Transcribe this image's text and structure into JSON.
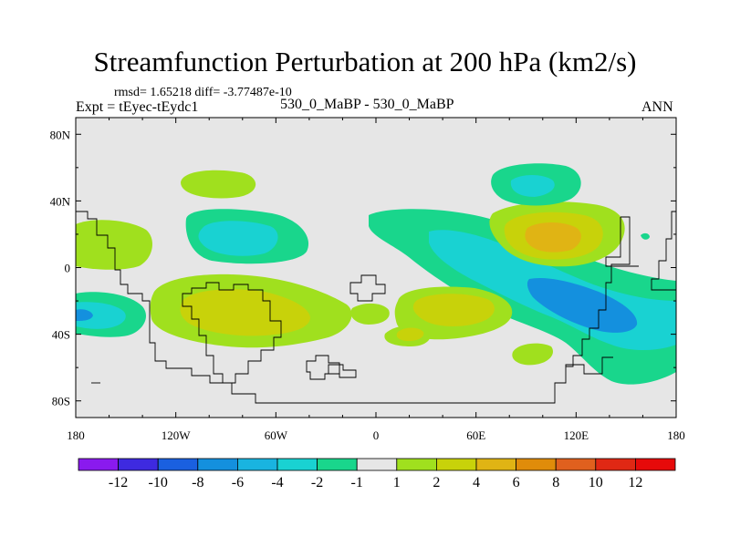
{
  "chart_data": {
    "type": "contour-map",
    "title": "Streamfunction Perturbation at 200 hPa (km2/s)",
    "stats_text": "rmsd= 1.65218 diff= -3.77487e-10",
    "experiment_text": "Expt = tEyec-tEydc1",
    "case_text": "530_0_MaBP - 530_0_MaBP",
    "season": "ANN",
    "x_ticks": [
      "180",
      "120W",
      "60W",
      "0",
      "60E",
      "120E",
      "180"
    ],
    "x_tick_values": [
      -180,
      -120,
      -60,
      0,
      60,
      120,
      180
    ],
    "y_ticks": [
      "80N",
      "40N",
      "0",
      "40S",
      "80S"
    ],
    "y_tick_values": [
      80,
      40,
      0,
      -40,
      -80
    ],
    "xlim": [
      -180,
      180
    ],
    "ylim": [
      -90,
      90
    ],
    "colorbar": {
      "labels": [
        "-12",
        "-10",
        "-8",
        "-6",
        "-4",
        "-2",
        "-1",
        "1",
        "2",
        "4",
        "6",
        "8",
        "10",
        "12"
      ],
      "levels": [
        -12,
        -10,
        -8,
        -6,
        -4,
        -2,
        -1,
        1,
        2,
        4,
        6,
        8,
        10,
        12
      ],
      "colors": [
        "#8a1aee",
        "#3e2ae0",
        "#1a60e0",
        "#1490de",
        "#19b4e0",
        "#19d2d2",
        "#19d68c",
        "#e6e6e6",
        "#a0e01e",
        "#c8d20a",
        "#e0b414",
        "#e08c0a",
        "#e0601e",
        "#e02814",
        "#e60a0a"
      ]
    },
    "background_color": "#e6e6e6"
  }
}
